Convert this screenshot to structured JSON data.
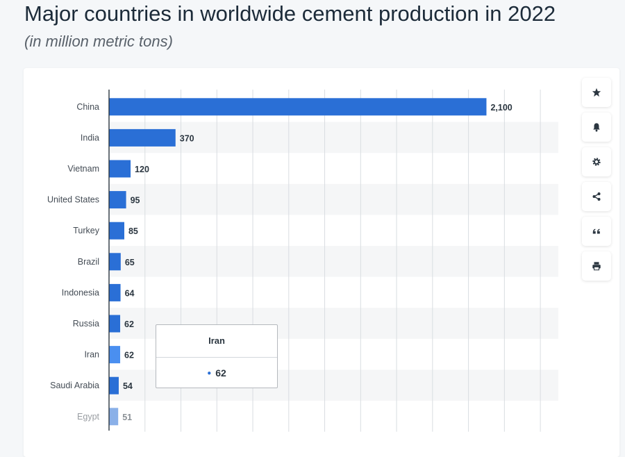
{
  "header": {
    "title": "Major countries in worldwide cement production in 2022",
    "subtitle": "(in million metric tons)"
  },
  "toolbar": {
    "buttons": [
      {
        "icon": "star-icon"
      },
      {
        "icon": "bell-icon"
      },
      {
        "icon": "gear-icon"
      },
      {
        "icon": "share-icon"
      },
      {
        "icon": "quote-icon"
      },
      {
        "icon": "print-icon"
      }
    ]
  },
  "tooltip": {
    "title": "Iran",
    "value": "62"
  },
  "colors": {
    "bar": "#2a6fd6",
    "bar_highlight": "#4a8ff0",
    "label": "#444c55",
    "stripe": "#f5f6f7",
    "grid": "#d9dde1"
  },
  "chart_data": {
    "type": "bar",
    "orientation": "horizontal",
    "categories": [
      "China",
      "India",
      "Vietnam",
      "United States",
      "Turkey",
      "Brazil",
      "Indonesia",
      "Russia",
      "Iran",
      "Saudi Arabia",
      "Egypt"
    ],
    "values": [
      2100,
      370,
      120,
      95,
      85,
      65,
      64,
      62,
      62,
      54,
      51
    ],
    "value_labels": [
      "2,100",
      "370",
      "120",
      "95",
      "85",
      "65",
      "64",
      "62",
      "62",
      "54",
      "51"
    ],
    "highlighted": "Iran",
    "xlim": [
      0,
      2500
    ],
    "grid": true,
    "title": "Major countries in worldwide cement production in 2022",
    "subtitle": "(in million metric tons)"
  }
}
